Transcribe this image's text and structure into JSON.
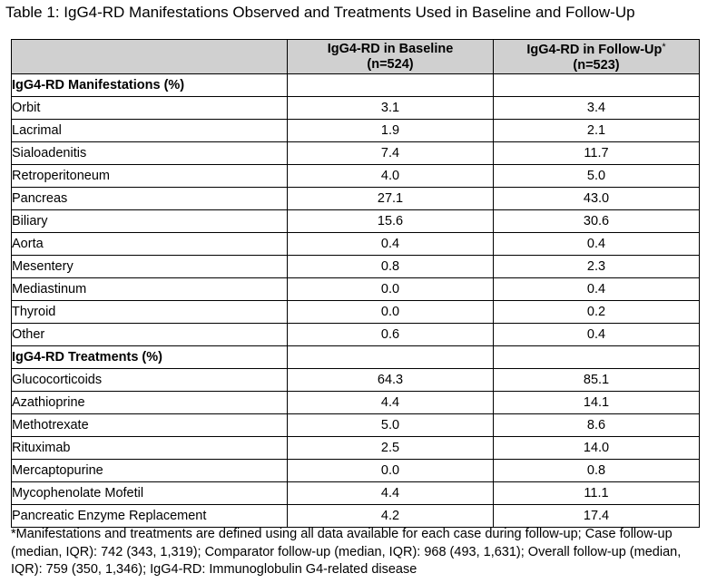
{
  "caption": "Table 1: IgG4-RD Manifestations Observed and Treatments Used in Baseline and Follow-Up",
  "header": {
    "col1": "",
    "col2_line1": "IgG4-RD in Baseline",
    "col2_line2": "(n=524)",
    "col3_line1": "IgG4-RD in Follow-Up",
    "col3_star": "*",
    "col3_line2": "(n=523)"
  },
  "sections": [
    {
      "title": "IgG4-RD Manifestations (%)",
      "rows": [
        {
          "label": "Orbit",
          "baseline": "3.1",
          "followup": "3.4"
        },
        {
          "label": "Lacrimal",
          "baseline": "1.9",
          "followup": "2.1"
        },
        {
          "label": "Sialoadenitis",
          "baseline": "7.4",
          "followup": "11.7"
        },
        {
          "label": "Retroperitoneum",
          "baseline": "4.0",
          "followup": "5.0"
        },
        {
          "label": "Pancreas",
          "baseline": "27.1",
          "followup": "43.0"
        },
        {
          "label": "Biliary",
          "baseline": "15.6",
          "followup": "30.6"
        },
        {
          "label": "Aorta",
          "baseline": "0.4",
          "followup": "0.4"
        },
        {
          "label": "Mesentery",
          "baseline": "0.8",
          "followup": "2.3"
        },
        {
          "label": "Mediastinum",
          "baseline": "0.0",
          "followup": "0.4"
        },
        {
          "label": "Thyroid",
          "baseline": "0.0",
          "followup": "0.2"
        },
        {
          "label": "Other",
          "baseline": "0.6",
          "followup": "0.4"
        }
      ]
    },
    {
      "title": "IgG4-RD Treatments (%)",
      "rows": [
        {
          "label": "Glucocorticoids",
          "baseline": "64.3",
          "followup": "85.1"
        },
        {
          "label": "Azathioprine",
          "baseline": "4.4",
          "followup": "14.1"
        },
        {
          "label": "Methotrexate",
          "baseline": "5.0",
          "followup": "8.6"
        },
        {
          "label": "Rituximab",
          "baseline": "2.5",
          "followup": "14.0"
        },
        {
          "label": "Mercaptopurine",
          "baseline": "0.0",
          "followup": "0.8"
        },
        {
          "label": "Mycophenolate Mofetil",
          "baseline": "4.4",
          "followup": "11.1"
        },
        {
          "label": "Pancreatic Enzyme Replacement",
          "baseline": "4.2",
          "followup": "17.4"
        }
      ]
    }
  ],
  "footnote": "*Manifestations and treatments are defined using all data available for each case during follow-up; Case follow-up (median, IQR): 742 (343, 1,319); Comparator follow-up (median, IQR): 968 (493, 1,631); Overall follow-up (median, IQR): 759 (350, 1,346); IgG4-RD: Immunoglobulin G4-related disease",
  "colors": {
    "header_fill": "#d0d0d0",
    "border": "#000000",
    "text": "#000000"
  }
}
